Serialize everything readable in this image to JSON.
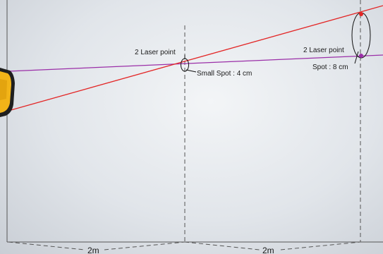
{
  "diagram": {
    "near_point_label": "2 Laser point",
    "near_spot_label": "Small Spot : 4 cm",
    "far_point_label": "2 Laser point",
    "far_spot_label": "Spot : 8 cm",
    "distance_1_label": "2m",
    "distance_2_label": "2m",
    "colors": {
      "laser_red": "#e32626",
      "laser_purple": "#9b2fa8",
      "device_yellow": "#f2b418",
      "guide_line": "#555555"
    }
  }
}
